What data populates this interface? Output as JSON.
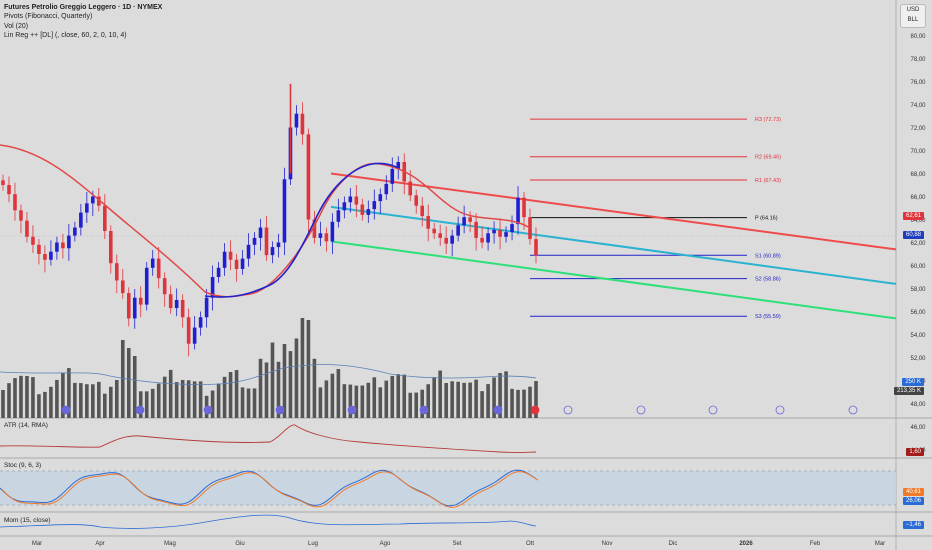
{
  "legend": {
    "title": "Futures Petrolio Greggio Leggero · 1D · NYMEX",
    "line2": "Pivots (Fibonacci, Quarterly)",
    "line3": "Vol (20)",
    "line4": "Lin Reg ++ [DL] (, close, 60, 2, 0, 10, 4)"
  },
  "currency_box": {
    "line1": "USD",
    "line2": "BLL"
  },
  "panels": {
    "atr": "ATR (14, RMA)",
    "stoch": "Stoc (9, 6, 3)",
    "mom": "Mom (15, close)"
  },
  "badges": {
    "channel_top": "62,61",
    "last_price": "60,88",
    "vol_avg": "250 K",
    "vol_last": "213,35 K",
    "atr": "1,60",
    "stoch_k": "40,61",
    "stoch_d": "26,06",
    "mom": "−1,46"
  },
  "colors": {
    "up": "#1f1fd1",
    "down": "#e0343c",
    "pivot_r": "#e0343c",
    "pivot_p": "#111111",
    "pivot_s": "#2323c9",
    "regression_upper": "#ef4b4b",
    "regression_mid": "#2ab3d0",
    "regression_lower": "#2ee07a"
  },
  "chart_data": {
    "type": "candlestick",
    "y_ticks": [
      "80,00",
      "78,00",
      "76,00",
      "74,00",
      "72,00",
      "70,00",
      "68,00",
      "66,00",
      "64,00",
      "62,00",
      "60,00",
      "58,00",
      "56,00",
      "54,00",
      "52,00",
      "50,00",
      "48,00",
      "46,00",
      "44,00"
    ],
    "y_range": [
      43.2,
      81.8
    ],
    "x_ticks": [
      "Mar",
      "Apr",
      "Mag",
      "Giu",
      "Lug",
      "Ago",
      "Set",
      "Ott",
      "Nov",
      "Dic",
      "2026",
      "Feb",
      "Mar"
    ],
    "pivots": [
      {
        "label": "R3 (72.73)",
        "value": 72.73
      },
      {
        "label": "R2 (69.46)",
        "value": 69.46
      },
      {
        "label": "R1 (67.43)",
        "value": 67.43
      },
      {
        "label": "P (64.16)",
        "value": 64.16
      },
      {
        "label": "S1 (60.89)",
        "value": 60.89
      },
      {
        "label": "S2 (58.86)",
        "value": 58.86
      },
      {
        "label": "S3 (55.59)",
        "value": 55.59
      }
    ],
    "regression_channel": {
      "upper": [
        [
          0.0,
          68.0
        ],
        [
          1.0,
          61.4
        ]
      ],
      "mid": [
        [
          0.0,
          65.1
        ],
        [
          1.0,
          58.4
        ]
      ],
      "lower": [
        [
          0.0,
          62.1
        ],
        [
          1.0,
          55.4
        ]
      ]
    },
    "close_series": [
      67.0,
      66.2,
      64.8,
      63.9,
      62.5,
      61.8,
      61.0,
      60.5,
      61.2,
      62.0,
      61.5,
      62.6,
      63.3,
      64.6,
      65.4,
      66.0,
      65.2,
      63.0,
      60.2,
      58.7,
      57.6,
      55.4,
      57.2,
      56.6,
      59.8,
      60.6,
      58.9,
      57.5,
      56.3,
      57.0,
      55.5,
      53.2,
      54.6,
      55.5,
      57.2,
      59.0,
      59.8,
      61.2,
      60.5,
      59.7,
      60.6,
      61.8,
      62.4,
      63.3,
      60.9,
      61.6,
      62.0,
      67.5,
      72.0,
      73.2,
      71.4,
      64.0,
      62.4,
      62.8,
      62.1,
      63.8,
      64.8,
      65.5,
      66.0,
      65.3,
      64.4,
      64.9,
      65.6,
      66.2,
      67.1,
      68.4,
      69.0,
      67.3,
      66.1,
      65.2,
      64.3,
      63.2,
      62.8,
      62.4,
      61.9,
      62.6,
      63.5,
      64.2,
      63.8,
      62.4,
      62.0,
      62.8,
      63.1,
      62.5,
      62.9,
      63.6,
      65.9,
      64.2,
      62.3,
      60.88
    ],
    "volume_bars": 90
  }
}
